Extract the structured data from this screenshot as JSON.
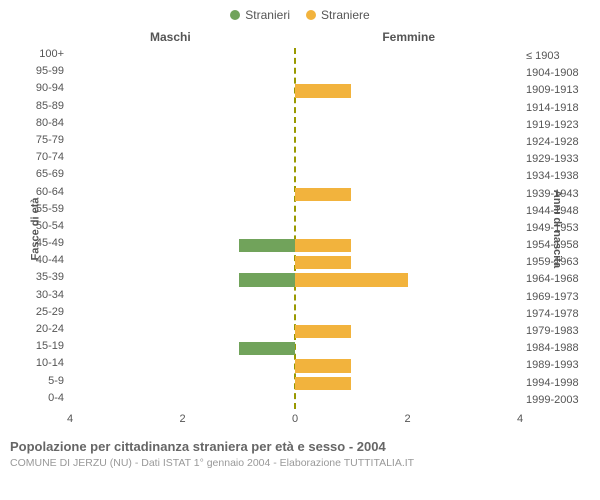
{
  "legend": {
    "male": {
      "label": "Stranieri",
      "color": "#71a35b"
    },
    "female": {
      "label": "Straniere",
      "color": "#f2b33d"
    }
  },
  "headers": {
    "left": "Maschi",
    "right": "Femmine"
  },
  "axis_titles": {
    "left": "Fasce di età",
    "right": "Anni di nascita"
  },
  "chart": {
    "type": "population-pyramid",
    "xmax": 4,
    "xticks_left": [
      4,
      2,
      0
    ],
    "xticks_right": [
      0,
      2,
      4
    ],
    "background_color": "#ffffff",
    "midline_color": "#999900",
    "text_color": "#555555",
    "bar_height_ratio": 0.76,
    "rows": [
      {
        "age": "100+",
        "birth": "≤ 1903",
        "m": 0,
        "f": 0
      },
      {
        "age": "95-99",
        "birth": "1904-1908",
        "m": 0,
        "f": 0
      },
      {
        "age": "90-94",
        "birth": "1909-1913",
        "m": 0,
        "f": 1
      },
      {
        "age": "85-89",
        "birth": "1914-1918",
        "m": 0,
        "f": 0
      },
      {
        "age": "80-84",
        "birth": "1919-1923",
        "m": 0,
        "f": 0
      },
      {
        "age": "75-79",
        "birth": "1924-1928",
        "m": 0,
        "f": 0
      },
      {
        "age": "70-74",
        "birth": "1929-1933",
        "m": 0,
        "f": 0
      },
      {
        "age": "65-69",
        "birth": "1934-1938",
        "m": 0,
        "f": 0
      },
      {
        "age": "60-64",
        "birth": "1939-1943",
        "m": 0,
        "f": 1
      },
      {
        "age": "55-59",
        "birth": "1944-1948",
        "m": 0,
        "f": 0
      },
      {
        "age": "50-54",
        "birth": "1949-1953",
        "m": 0,
        "f": 0
      },
      {
        "age": "45-49",
        "birth": "1954-1958",
        "m": 1,
        "f": 1
      },
      {
        "age": "40-44",
        "birth": "1959-1963",
        "m": 0,
        "f": 1
      },
      {
        "age": "35-39",
        "birth": "1964-1968",
        "m": 1,
        "f": 2
      },
      {
        "age": "30-34",
        "birth": "1969-1973",
        "m": 0,
        "f": 0
      },
      {
        "age": "25-29",
        "birth": "1974-1978",
        "m": 0,
        "f": 0
      },
      {
        "age": "20-24",
        "birth": "1979-1983",
        "m": 0,
        "f": 1
      },
      {
        "age": "15-19",
        "birth": "1984-1988",
        "m": 1,
        "f": 0
      },
      {
        "age": "10-14",
        "birth": "1989-1993",
        "m": 0,
        "f": 1
      },
      {
        "age": "5-9",
        "birth": "1994-1998",
        "m": 0,
        "f": 1
      },
      {
        "age": "0-4",
        "birth": "1999-2003",
        "m": 0,
        "f": 0
      }
    ]
  },
  "footer": {
    "title": "Popolazione per cittadinanza straniera per età e sesso - 2004",
    "subtitle": "COMUNE DI JERZU (NU) - Dati ISTAT 1° gennaio 2004 - Elaborazione TUTTITALIA.IT"
  }
}
